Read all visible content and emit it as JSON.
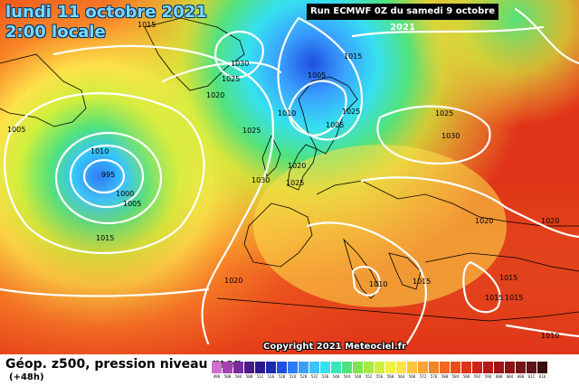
{
  "header": {
    "date_line": "lundi 11 octobre 2021",
    "time_line": "2:00 locale",
    "run_info": "Run ECMWF 0Z du samedi 9 octobre 2021"
  },
  "copyright": "Copyright 2021 Meteociel.fr",
  "footer": {
    "product_title": "Géop. z500, pression niveau mer",
    "forecast_offset": "(+48h)"
  },
  "pressure_labels": [
    "1015",
    "1030",
    "1025",
    "1020",
    "1015",
    "1005",
    "1020",
    "1010",
    "1005",
    "1025",
    "1025",
    "1010",
    "1005",
    "1030",
    "995",
    "1000",
    "1005",
    "1020",
    "1030",
    "1025",
    "1025",
    "1015",
    "1020",
    "1020",
    "1010",
    "1015",
    "1015",
    "1015",
    "1015",
    "1010"
  ],
  "scale": {
    "values": [
      "496",
      "500",
      "504",
      "508",
      "512",
      "516",
      "520",
      "524",
      "528",
      "532",
      "536",
      "540",
      "544",
      "548",
      "552",
      "556",
      "560",
      "564",
      "568",
      "572",
      "576",
      "580",
      "584",
      "588",
      "592",
      "596",
      "600",
      "604",
      "608",
      "612",
      "616"
    ],
    "colors": [
      "#d36ed1",
      "#a63fb0",
      "#7a2a9b",
      "#4a1a86",
      "#2a1a8c",
      "#1b2bb1",
      "#1f4fe0",
      "#2f7bf5",
      "#3aa0ff",
      "#37c4ff",
      "#36e0f0",
      "#39e6b8",
      "#52e27c",
      "#7ee552",
      "#a8eb3e",
      "#d0ef3c",
      "#f2f03e",
      "#fde24a",
      "#fdc53d",
      "#fca431",
      "#f98427",
      "#f46620",
      "#ec4b1b",
      "#df3418",
      "#cc2316",
      "#b81915",
      "#a01414",
      "#8a1414",
      "#741516",
      "#5e1418",
      "#3a0d0f"
    ]
  }
}
